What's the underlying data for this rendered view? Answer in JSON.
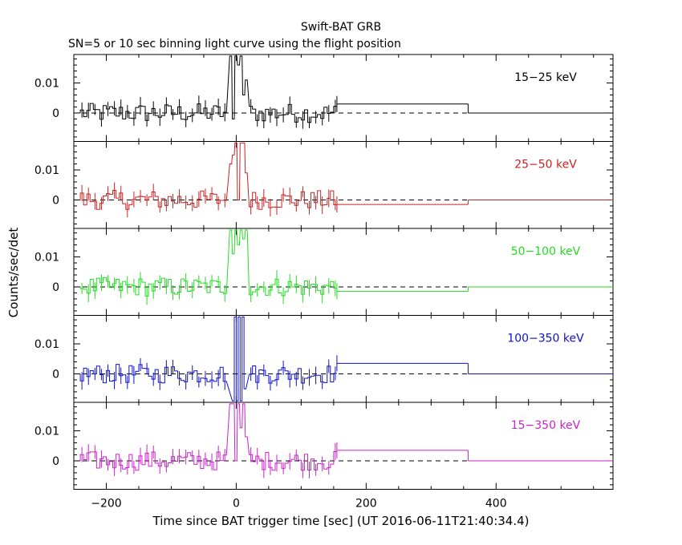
{
  "chart_data": {
    "type": "line",
    "title": "Swift-BAT GRB",
    "subtitle": "SN=5 or 10 sec binning light curve using the flight position",
    "xlabel": "Time since BAT trigger time [sec] (UT 2016-06-11T21:40:34.4)",
    "ylabel": "Counts/sec/det",
    "xlim": [
      -250,
      580
    ],
    "x_ticks": [
      -200,
      0,
      200,
      400
    ],
    "x_tick_labels": [
      "−200",
      "0",
      "200",
      "400"
    ],
    "y_ticks": [
      0,
      0.01
    ],
    "y_tick_labels": [
      "0",
      "0.01"
    ],
    "zero_line": "dashed",
    "panels": [
      {
        "band": "15−25 keV",
        "color": "#000000",
        "ylim": [
          -0.0095,
          0.0195
        ],
        "late_levels": [
          {
            "x0": 155,
            "x1": 357,
            "y": 0.003
          },
          {
            "x0": 357,
            "x1": 580,
            "y": 0.0
          }
        ],
        "spikes": [
          [
            -10,
            0.019
          ],
          [
            -6,
            -0.002
          ],
          [
            -2,
            0.019
          ],
          [
            2,
            0.016
          ],
          [
            6,
            0.019
          ],
          [
            10,
            0.006
          ],
          [
            14,
            0.011
          ]
        ]
      },
      {
        "band": "25−50 keV",
        "color": "#cc2222",
        "ylim": [
          -0.0095,
          0.0195
        ],
        "late_levels": [
          {
            "x0": 155,
            "x1": 357,
            "y": -0.0015
          },
          {
            "x0": 357,
            "x1": 580,
            "y": 0.0
          }
        ],
        "spikes": [
          [
            -10,
            0.012
          ],
          [
            -6,
            0.015
          ],
          [
            -2,
            0.019
          ],
          [
            2,
            0.0
          ],
          [
            6,
            0.019
          ],
          [
            10,
            0.019
          ],
          [
            14,
            0.009
          ]
        ]
      },
      {
        "band": "50−100 keV",
        "color": "#22dd22",
        "ylim": [
          -0.0095,
          0.0195
        ],
        "late_levels": [
          {
            "x0": 155,
            "x1": 357,
            "y": -0.0015
          },
          {
            "x0": 357,
            "x1": 580,
            "y": 0.0
          }
        ],
        "spikes": [
          [
            -10,
            0.019
          ],
          [
            -6,
            0.011
          ],
          [
            -2,
            0.019
          ],
          [
            2,
            0.014
          ],
          [
            6,
            0.019
          ],
          [
            10,
            0.016
          ],
          [
            14,
            0.019
          ]
        ]
      },
      {
        "band": "100−350 keV",
        "color": "#1111cc",
        "ylim": [
          -0.0095,
          0.0195
        ],
        "late_levels": [
          {
            "x0": 155,
            "x1": 357,
            "y": 0.0035
          },
          {
            "x0": 357,
            "x1": 580,
            "y": 0.0
          }
        ],
        "spikes": [
          [
            -6,
            -0.009
          ],
          [
            -3,
            0.019
          ],
          [
            0,
            -0.009
          ],
          [
            3,
            0.019
          ],
          [
            6,
            -0.009
          ],
          [
            9,
            0.019
          ],
          [
            12,
            -0.005
          ]
        ]
      },
      {
        "band": "15−350 keV",
        "color": "#cc22cc",
        "ylim": [
          -0.0095,
          0.0195
        ],
        "late_levels": [
          {
            "x0": 155,
            "x1": 357,
            "y": 0.0035
          },
          {
            "x0": 357,
            "x1": 580,
            "y": 0.0
          }
        ],
        "spikes": [
          [
            -10,
            0.019
          ],
          [
            -6,
            0.019
          ],
          [
            -2,
            0.0
          ],
          [
            2,
            0.019
          ],
          [
            6,
            0.011
          ],
          [
            10,
            0.019
          ],
          [
            14,
            0.008
          ]
        ]
      }
    ]
  }
}
